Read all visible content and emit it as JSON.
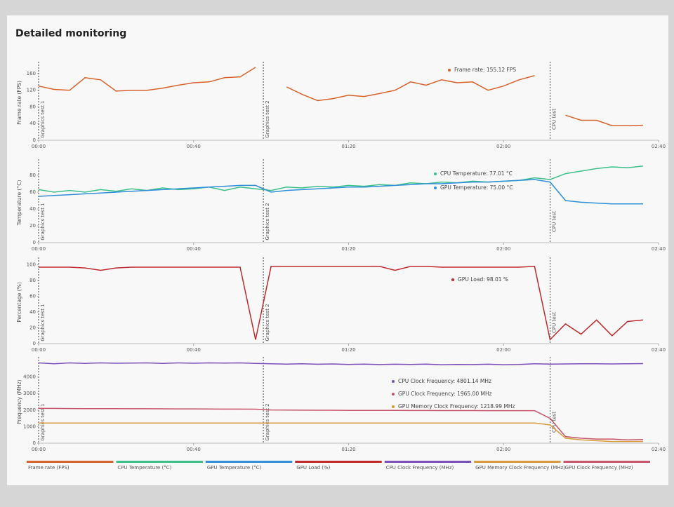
{
  "title": "Detailed monitoring",
  "chart_data": [
    {
      "type": "line",
      "ylabel": "Frame rate (FPS)",
      "x": [
        0,
        4,
        8,
        12,
        16,
        20,
        24,
        28,
        32,
        36,
        40,
        44,
        48,
        52,
        56,
        60,
        64,
        68,
        72,
        76,
        80,
        84,
        88,
        92,
        96,
        100,
        104,
        108,
        112,
        116,
        120,
        124,
        128,
        132,
        136,
        140,
        144,
        148,
        152,
        156
      ],
      "xlim": [
        0,
        160
      ],
      "xticks": [
        {
          "value": 0,
          "label": "00:00"
        },
        {
          "value": 40,
          "label": "00:40"
        },
        {
          "value": 80,
          "label": "01:20"
        },
        {
          "value": 120,
          "label": "02:00"
        },
        {
          "value": 160,
          "label": "02:40"
        }
      ],
      "ylim": [
        0,
        180
      ],
      "yticks": [
        0,
        40,
        80,
        120,
        160
      ],
      "markers": [
        {
          "x": 0,
          "label": "Graphics test 1"
        },
        {
          "x": 58,
          "label": "Graphics test 2"
        },
        {
          "x": 132,
          "label": "CPU test"
        }
      ],
      "annotations": [
        "Frame rate: 155.12 FPS"
      ],
      "series": [
        {
          "name": "Frame rate (FPS)",
          "color": "#d9622b",
          "values": [
            130,
            122,
            120,
            150,
            145,
            118,
            120,
            120,
            125,
            132,
            138,
            140,
            150,
            152,
            175,
            null,
            128,
            110,
            95,
            100,
            108,
            105,
            112,
            120,
            140,
            132,
            145,
            138,
            140,
            120,
            130,
            145,
            155,
            null,
            60,
            48,
            48,
            35,
            35,
            36
          ]
        }
      ]
    },
    {
      "type": "line",
      "ylabel": "Temperature (°C)",
      "x": [
        0,
        4,
        8,
        12,
        16,
        20,
        24,
        28,
        32,
        36,
        40,
        44,
        48,
        52,
        56,
        60,
        64,
        68,
        72,
        76,
        80,
        84,
        88,
        92,
        96,
        100,
        104,
        108,
        112,
        116,
        120,
        124,
        128,
        132,
        136,
        140,
        144,
        148,
        152,
        156
      ],
      "xlim": [
        0,
        160
      ],
      "xticks": [
        {
          "value": 0,
          "label": "00:00"
        },
        {
          "value": 40,
          "label": "00:40"
        },
        {
          "value": 80,
          "label": "01:20"
        },
        {
          "value": 120,
          "label": "02:00"
        },
        {
          "value": 160,
          "label": "02:40"
        }
      ],
      "ylim": [
        0,
        95
      ],
      "yticks": [
        0,
        20,
        40,
        60,
        80
      ],
      "markers": [
        {
          "x": 0,
          "label": "Graphics test 1"
        },
        {
          "x": 58,
          "label": "Graphics test 2"
        },
        {
          "x": 132,
          "label": "CPU test"
        }
      ],
      "annotations": [
        "CPU Temperature: 77.01 °C",
        "GPU Temperature: 75.00 °C"
      ],
      "series": [
        {
          "name": "CPU Temperature (°C)",
          "color": "#3cc08a",
          "values": [
            63,
            60,
            62,
            60,
            63,
            61,
            64,
            62,
            65,
            63,
            64,
            66,
            62,
            66,
            64,
            62,
            66,
            65,
            67,
            66,
            68,
            67,
            69,
            68,
            71,
            70,
            72,
            71,
            73,
            72,
            73,
            74,
            77,
            75,
            82,
            85,
            88,
            90,
            89,
            91
          ]
        },
        {
          "name": "GPU Temperature (°C)",
          "color": "#2f8fd8",
          "values": [
            55,
            56,
            57,
            58,
            59,
            60,
            61,
            62,
            63,
            64,
            65,
            66,
            67,
            68,
            68,
            60,
            62,
            63,
            64,
            65,
            66,
            66,
            67,
            68,
            69,
            70,
            70,
            71,
            72,
            72,
            73,
            74,
            75,
            72,
            50,
            48,
            47,
            46,
            46,
            46
          ]
        }
      ]
    },
    {
      "type": "line",
      "ylabel": "Percentage (%)",
      "x": [
        0,
        4,
        8,
        12,
        16,
        20,
        24,
        28,
        32,
        36,
        40,
        44,
        48,
        52,
        56,
        60,
        64,
        68,
        72,
        76,
        80,
        84,
        88,
        92,
        96,
        100,
        104,
        108,
        112,
        116,
        120,
        124,
        128,
        132,
        136,
        140,
        144,
        148,
        152,
        156
      ],
      "xlim": [
        0,
        160
      ],
      "xticks": [
        {
          "value": 0,
          "label": "00:00"
        },
        {
          "value": 40,
          "label": "00:40"
        },
        {
          "value": 80,
          "label": "01:20"
        },
        {
          "value": 120,
          "label": "02:00"
        },
        {
          "value": 160,
          "label": "02:40"
        }
      ],
      "ylim": [
        0,
        105
      ],
      "yticks": [
        0,
        20,
        40,
        60,
        80,
        100
      ],
      "markers": [
        {
          "x": 0,
          "label": "Graphics test 1"
        },
        {
          "x": 58,
          "label": "Graphics test 2"
        },
        {
          "x": 132,
          "label": "CPU test"
        }
      ],
      "annotations": [
        "GPU Load: 98.01 %"
      ],
      "series": [
        {
          "name": "GPU Load (%)",
          "color": "#c0282d",
          "values": [
            97,
            97,
            97,
            96,
            93,
            96,
            97,
            97,
            97,
            97,
            97,
            97,
            97,
            97,
            5,
            98,
            98,
            98,
            98,
            98,
            98,
            98,
            98,
            93,
            98,
            98,
            97,
            97,
            97,
            97,
            97,
            97,
            98,
            5,
            25,
            12,
            30,
            10,
            28,
            30
          ]
        }
      ]
    },
    {
      "type": "line",
      "ylabel": "Frequency (MHz)",
      "x": [
        0,
        4,
        8,
        12,
        16,
        20,
        24,
        28,
        32,
        36,
        40,
        44,
        48,
        52,
        56,
        60,
        64,
        68,
        72,
        76,
        80,
        84,
        88,
        92,
        96,
        100,
        104,
        108,
        112,
        116,
        120,
        124,
        128,
        132,
        136,
        140,
        144,
        148,
        152,
        156
      ],
      "xlim": [
        0,
        160
      ],
      "xticks": [
        {
          "value": 0,
          "label": "00:00"
        },
        {
          "value": 40,
          "label": "00:40"
        },
        {
          "value": 80,
          "label": "01:20"
        },
        {
          "value": 120,
          "label": "02:00"
        },
        {
          "value": 160,
          "label": "02:40"
        }
      ],
      "ylim": [
        0,
        5000
      ],
      "yticks": [
        0,
        1000,
        2000,
        3000,
        4000
      ],
      "markers": [
        {
          "x": 0,
          "label": "Graphics test 1"
        },
        {
          "x": 58,
          "label": "Graphics test 2"
        },
        {
          "x": 132,
          "label": "CPU test"
        }
      ],
      "annotations": [
        "CPU Clock Frequency: 4801.14 MHz",
        "GPU Clock Frequency: 1965.00 MHz",
        "GPU Memory Clock Frequency: 1218.99 MHz"
      ],
      "series": [
        {
          "name": "CPU Clock Frequency (MHz)",
          "color": "#7b4fb8",
          "values": [
            4850,
            4800,
            4850,
            4820,
            4850,
            4830,
            4840,
            4850,
            4820,
            4850,
            4830,
            4850,
            4840,
            4850,
            4820,
            4800,
            4780,
            4800,
            4770,
            4790,
            4760,
            4780,
            4750,
            4770,
            4760,
            4780,
            4740,
            4760,
            4750,
            4770,
            4740,
            4760,
            4800,
            4780,
            4790,
            4800,
            4800,
            4790,
            4800,
            4810
          ]
        },
        {
          "name": "GPU Clock Frequency (MHz)",
          "color": "#c8566a",
          "values": [
            2100,
            2100,
            2095,
            2090,
            2090,
            2085,
            2080,
            2080,
            2075,
            2070,
            2070,
            2065,
            2060,
            2060,
            2055,
            2010,
            2000,
            1995,
            1990,
            1990,
            1985,
            1985,
            1980,
            1980,
            1975,
            1975,
            1970,
            1970,
            1970,
            1965,
            1965,
            1965,
            1965,
            1500,
            400,
            300,
            250,
            250,
            200,
            220
          ]
        },
        {
          "name": "GPU Memory Clock Frequency (MHz)",
          "color": "#d89a3a",
          "values": [
            1219,
            1219,
            1219,
            1219,
            1219,
            1219,
            1219,
            1219,
            1219,
            1219,
            1219,
            1219,
            1219,
            1219,
            1219,
            1219,
            1219,
            1219,
            1219,
            1219,
            1219,
            1219,
            1219,
            1219,
            1219,
            1219,
            1219,
            1219,
            1219,
            1219,
            1219,
            1219,
            1219,
            1100,
            300,
            200,
            150,
            100,
            100,
            100
          ]
        }
      ]
    }
  ]
}
